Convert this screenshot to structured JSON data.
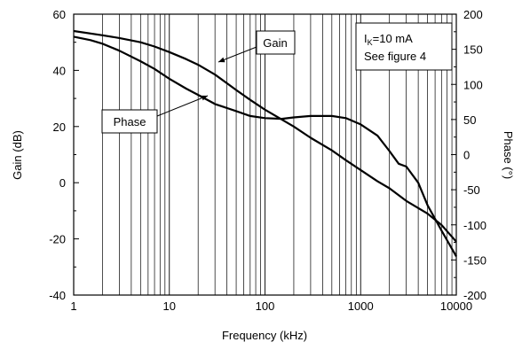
{
  "chart_data": {
    "type": "line",
    "xlabel": "Frequency (kHz)",
    "ylabel_left": "Gain (dB)",
    "ylabel_right": "Phase (°)",
    "x_scale": "log",
    "xlim": [
      1,
      10000
    ],
    "ylim_left": [
      -40,
      60
    ],
    "ylim_right": [
      -200,
      200
    ],
    "x_ticks": [
      1,
      10,
      100,
      1000,
      10000
    ],
    "x_tick_labels": [
      "1",
      "10",
      "100",
      "1000",
      "10000"
    ],
    "y_left_ticks": [
      -40,
      -20,
      0,
      20,
      40,
      60
    ],
    "y_left_tick_labels": [
      "-40",
      "-20",
      "0",
      "20",
      "40",
      "60"
    ],
    "y_right_ticks": [
      -200,
      -150,
      -100,
      -50,
      0,
      50,
      100,
      150,
      200
    ],
    "y_right_tick_labels": [
      "-200",
      "-150",
      "-100",
      "-50",
      "0",
      "50",
      "100",
      "150",
      "200"
    ],
    "grid": "vertical lines at log decades and minor ticks",
    "annotations": {
      "gain_label": "Gain",
      "phase_label": "Phase",
      "condition_line1_main": "I",
      "condition_line1_sub": "K",
      "condition_line1_rest": "=10 mA",
      "condition_line2": "See figure 4"
    },
    "series": [
      {
        "name": "Gain",
        "axis": "left",
        "x": [
          1,
          2,
          3,
          5,
          7,
          10,
          15,
          20,
          30,
          50,
          70,
          100,
          150,
          200,
          300,
          500,
          700,
          1000,
          1500,
          2000,
          3000,
          5000,
          7000,
          10000
        ],
        "y": [
          54,
          52.5,
          51.5,
          50,
          48.5,
          46.5,
          44,
          42,
          38.5,
          33,
          29.5,
          26,
          22.5,
          20,
          16,
          11.5,
          8,
          4.5,
          0.5,
          -2,
          -6.5,
          -11,
          -15,
          -21
        ]
      },
      {
        "name": "Phase",
        "axis": "right",
        "x": [
          1,
          1.5,
          2,
          3,
          5,
          7,
          10,
          15,
          20,
          30,
          50,
          70,
          100,
          150,
          200,
          300,
          500,
          700,
          1000,
          1500,
          2000,
          2500,
          3000,
          4000,
          5000,
          7000,
          10000
        ],
        "y": [
          168,
          163,
          158,
          148,
          133,
          122,
          108,
          94,
          85,
          72,
          62,
          55,
          52,
          51,
          53,
          55,
          55,
          52,
          43,
          27,
          5,
          -13,
          -17,
          -40,
          -72,
          -108,
          -145
        ]
      }
    ]
  }
}
